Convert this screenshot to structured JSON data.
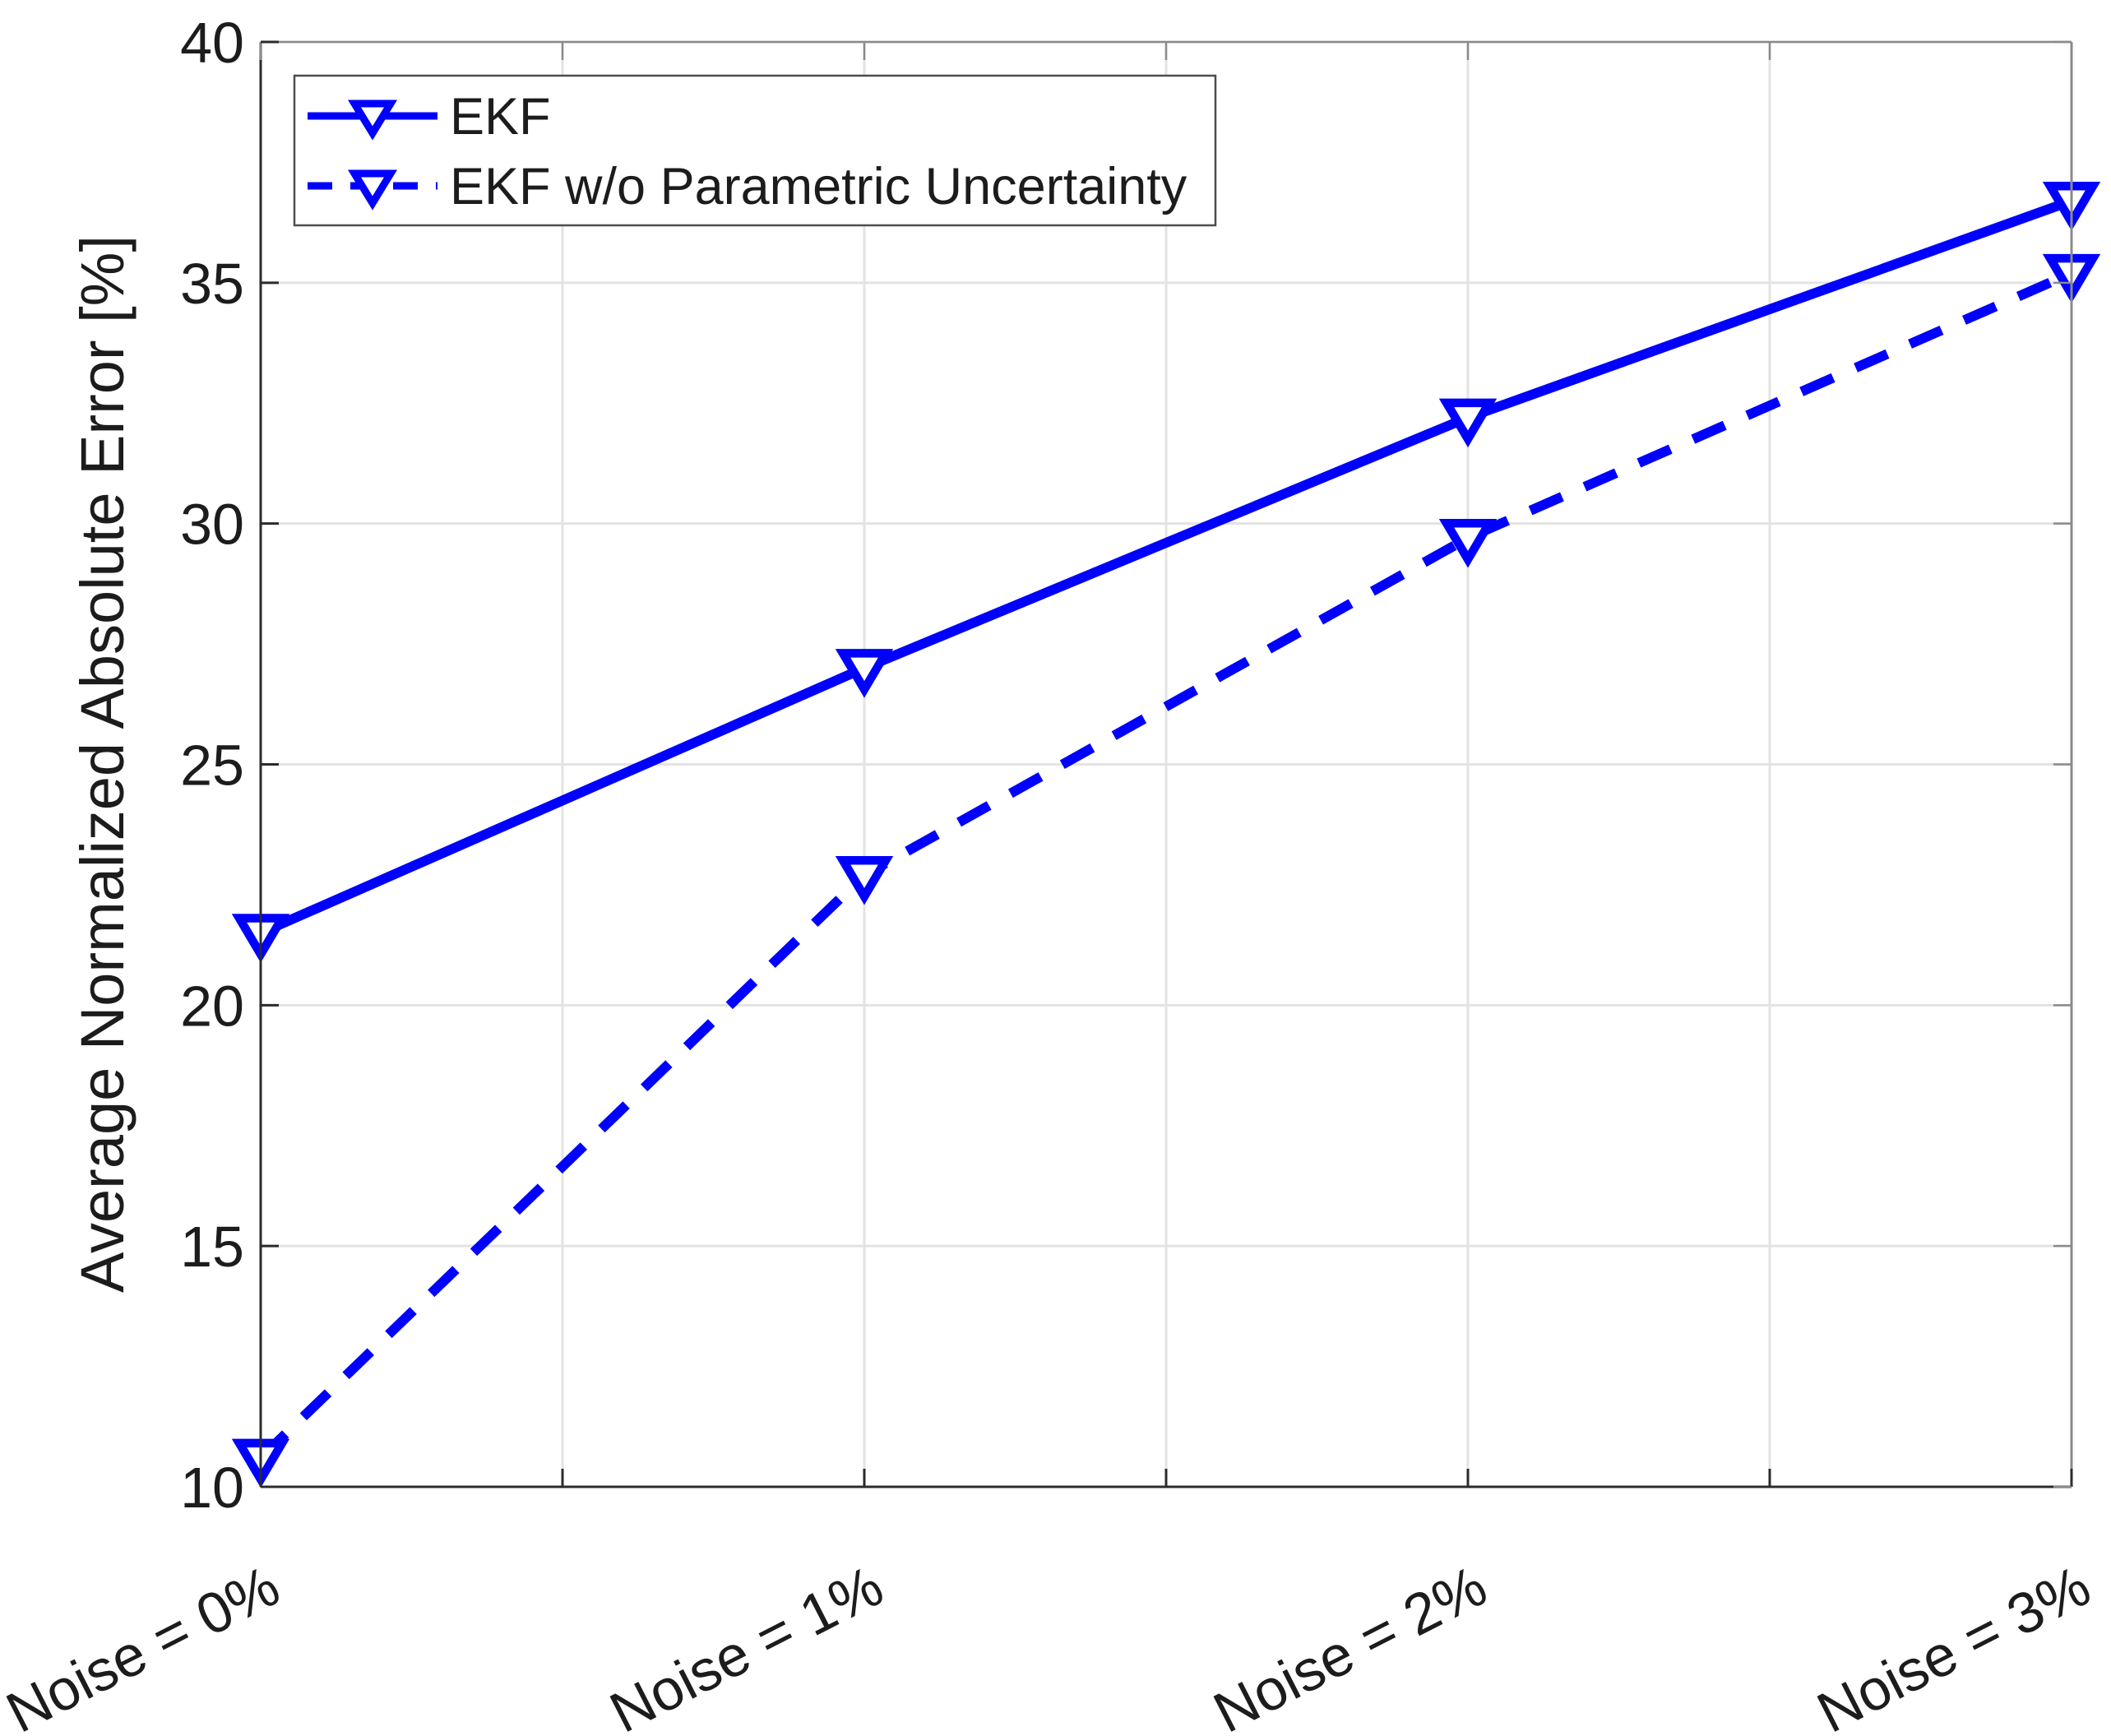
{
  "chart_data": {
    "type": "line",
    "title": "",
    "categories": [
      "Noise = 0%",
      "Noise = 1%",
      "Noise = 2%",
      "Noise = 3%"
    ],
    "series": [
      {
        "name": "EKF",
        "line_style": "solid",
        "marker": "triangle-down",
        "color": "#0000FF",
        "values": [
          21.5,
          27.0,
          32.2,
          36.7
        ]
      },
      {
        "name": "EKF w/o Parametric Uncertainty",
        "line_style": "dashed",
        "marker": "triangle-down",
        "color": "#0000FF",
        "values": [
          10.6,
          22.7,
          29.7,
          35.2
        ]
      }
    ],
    "xlabel": "",
    "ylabel": "Average Normalized Absolute Error [%]",
    "ylim": [
      10,
      40
    ],
    "yticks": [
      10,
      15,
      20,
      25,
      30,
      35,
      40
    ],
    "grid": true,
    "x_grid_divisions_per_category": 2,
    "x_tick_angle_deg": 27,
    "legend_position": "top-left"
  },
  "colors": {
    "line_blue": "#0000FF",
    "grid_gray": "#E3E3E3",
    "axis_dark": "#2B2B2B",
    "axis_light": "#8A8A8A",
    "text": "#1C1C1C",
    "background": "#FFFFFF",
    "legend_border": "#4D4D4D"
  }
}
